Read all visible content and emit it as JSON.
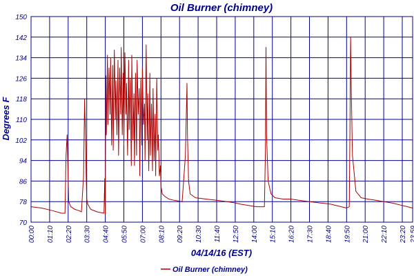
{
  "chart_data": {
    "type": "line",
    "title": "Oil Burner (chimney)",
    "xlabel": "04/14/16 (EST)",
    "ylabel": "Degrees F",
    "ylim": [
      70,
      150
    ],
    "yticks": [
      70,
      78,
      86,
      94,
      102,
      110,
      118,
      126,
      134,
      142,
      150
    ],
    "xlim": [
      "00:00",
      "23:59"
    ],
    "xtick_labels": [
      "00:00",
      "01:10",
      "02:20",
      "03:30",
      "04:40",
      "05:50",
      "07:00",
      "08:10",
      "09:20",
      "10:30",
      "11:40",
      "12:50",
      "14:00",
      "15:10",
      "16:20",
      "17:30",
      "18:40",
      "19:50",
      "21:00",
      "22:10",
      "23:20",
      "23:59"
    ],
    "grid": true,
    "legend_position": "bottom",
    "colors": {
      "series": "#aa0000",
      "grid": "#00008b",
      "text": "#00008b"
    },
    "series": [
      {
        "name": "Oil Burner (chimney)",
        "x": [
          "00:00",
          "00:40",
          "01:20",
          "01:55",
          "02:08",
          "02:12",
          "02:16",
          "02:18",
          "02:22",
          "02:30",
          "02:45",
          "03:00",
          "03:10",
          "03:18",
          "03:22",
          "03:26",
          "03:28",
          "03:30",
          "03:34",
          "03:45",
          "04:10",
          "04:35",
          "04:38",
          "04:40",
          "04:42",
          "04:44",
          "04:48",
          "04:50",
          "04:54",
          "04:58",
          "05:00",
          "05:04",
          "05:08",
          "05:10",
          "05:14",
          "05:18",
          "05:20",
          "05:24",
          "05:28",
          "05:30",
          "05:34",
          "05:38",
          "05:40",
          "05:44",
          "05:48",
          "05:50",
          "05:54",
          "05:58",
          "06:00",
          "06:04",
          "06:08",
          "06:10",
          "06:14",
          "06:18",
          "06:20",
          "06:24",
          "06:28",
          "06:30",
          "06:34",
          "06:38",
          "06:40",
          "06:44",
          "06:48",
          "06:50",
          "06:54",
          "06:58",
          "07:00",
          "07:04",
          "07:08",
          "07:10",
          "07:14",
          "07:18",
          "07:20",
          "07:24",
          "07:28",
          "07:30",
          "07:34",
          "07:38",
          "07:40",
          "07:44",
          "07:48",
          "07:50",
          "07:54",
          "07:58",
          "08:00",
          "08:04",
          "08:08",
          "08:10",
          "08:15",
          "08:25",
          "08:40",
          "09:00",
          "09:30",
          "09:42",
          "09:48",
          "09:50",
          "09:54",
          "10:00",
          "10:20",
          "11:00",
          "11:40",
          "12:20",
          "12:50",
          "13:10",
          "13:40",
          "14:10",
          "14:30",
          "14:40",
          "14:44",
          "14:46",
          "14:48",
          "14:54",
          "15:05",
          "15:20",
          "15:50",
          "16:20",
          "16:50",
          "17:30",
          "18:10",
          "18:50",
          "19:30",
          "19:50",
          "20:00",
          "20:03",
          "20:05",
          "20:08",
          "20:12",
          "20:25",
          "20:45",
          "21:10",
          "21:40",
          "22:10",
          "22:40",
          "23:00",
          "23:20",
          "23:40",
          "23:59"
        ],
        "y": [
          76,
          75.5,
          74.5,
          73.5,
          73.5,
          96,
          104,
          96,
          78,
          76,
          75,
          74.5,
          74,
          88,
          118,
          100,
          88,
          79,
          77,
          75,
          74,
          73.5,
          87,
          73,
          127,
          104,
          135,
          108,
          130,
          112,
          134,
          100,
          131,
          98,
          137,
          110,
          125,
          104,
          133,
          96,
          130,
          112,
          138,
          104,
          128,
          100,
          136,
          112,
          124,
          96,
          133,
          106,
          126,
          92,
          135,
          102,
          120,
          92,
          128,
          96,
          133,
          112,
          122,
          88,
          126,
          100,
          130,
          108,
          116,
          94,
          139,
          102,
          120,
          90,
          128,
          96,
          116,
          90,
          122,
          94,
          112,
          88,
          126,
          98,
          104,
          88,
          92,
          84,
          81,
          80,
          79,
          78.5,
          78,
          96,
          124,
          104,
          86,
          81,
          79.5,
          79,
          78.5,
          78,
          77.5,
          77,
          76.5,
          76,
          76,
          76,
          98,
          138,
          104,
          86,
          81,
          79.5,
          79,
          79,
          78.5,
          78,
          77.5,
          77,
          76,
          75.5,
          76,
          110,
          142,
          120,
          96,
          82,
          79.5,
          79,
          78.5,
          78,
          77.5,
          77,
          76.5,
          76,
          75.5
        ]
      }
    ]
  }
}
